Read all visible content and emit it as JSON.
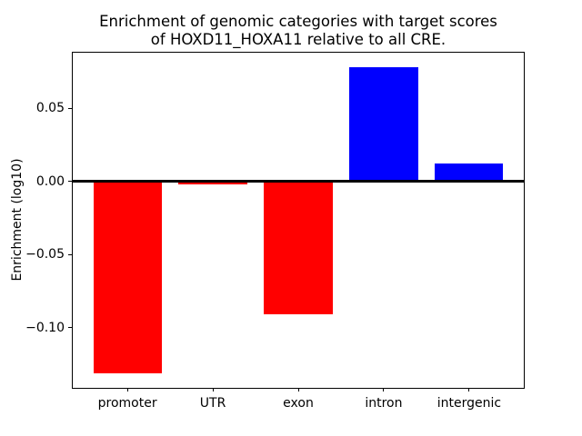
{
  "figure": {
    "title_line1": "Enrichment of genomic categories with target scores",
    "title_line2": "of HOXD11_HOXA11 relative to all CRE.",
    "background_color": "#ffffff",
    "axis_color": "#000000"
  },
  "chart_data": {
    "type": "bar",
    "title": "Enrichment of genomic categories with target scores of HOXD11_HOXA11 relative to all CRE.",
    "categories": [
      "promoter",
      "UTR",
      "exon",
      "intron",
      "intergenic"
    ],
    "values": [
      -0.131,
      -0.002,
      -0.091,
      0.078,
      0.012
    ],
    "bar_colors": [
      "#ff0000",
      "#ff0000",
      "#ff0000",
      "#0000ff",
      "#0000ff"
    ],
    "negative_color": "#ff0000",
    "positive_color": "#0000ff",
    "xlabel": "",
    "ylabel": "Enrichment (log10)",
    "ylim": [
      -0.141,
      0.088
    ],
    "yticks": [
      0.05,
      0,
      -0.05,
      -0.1
    ],
    "ytick_labels": [
      "0.05",
      "0.00",
      "−0.05",
      "−0.10"
    ],
    "grid": false,
    "zero_line": true,
    "legend": false
  }
}
